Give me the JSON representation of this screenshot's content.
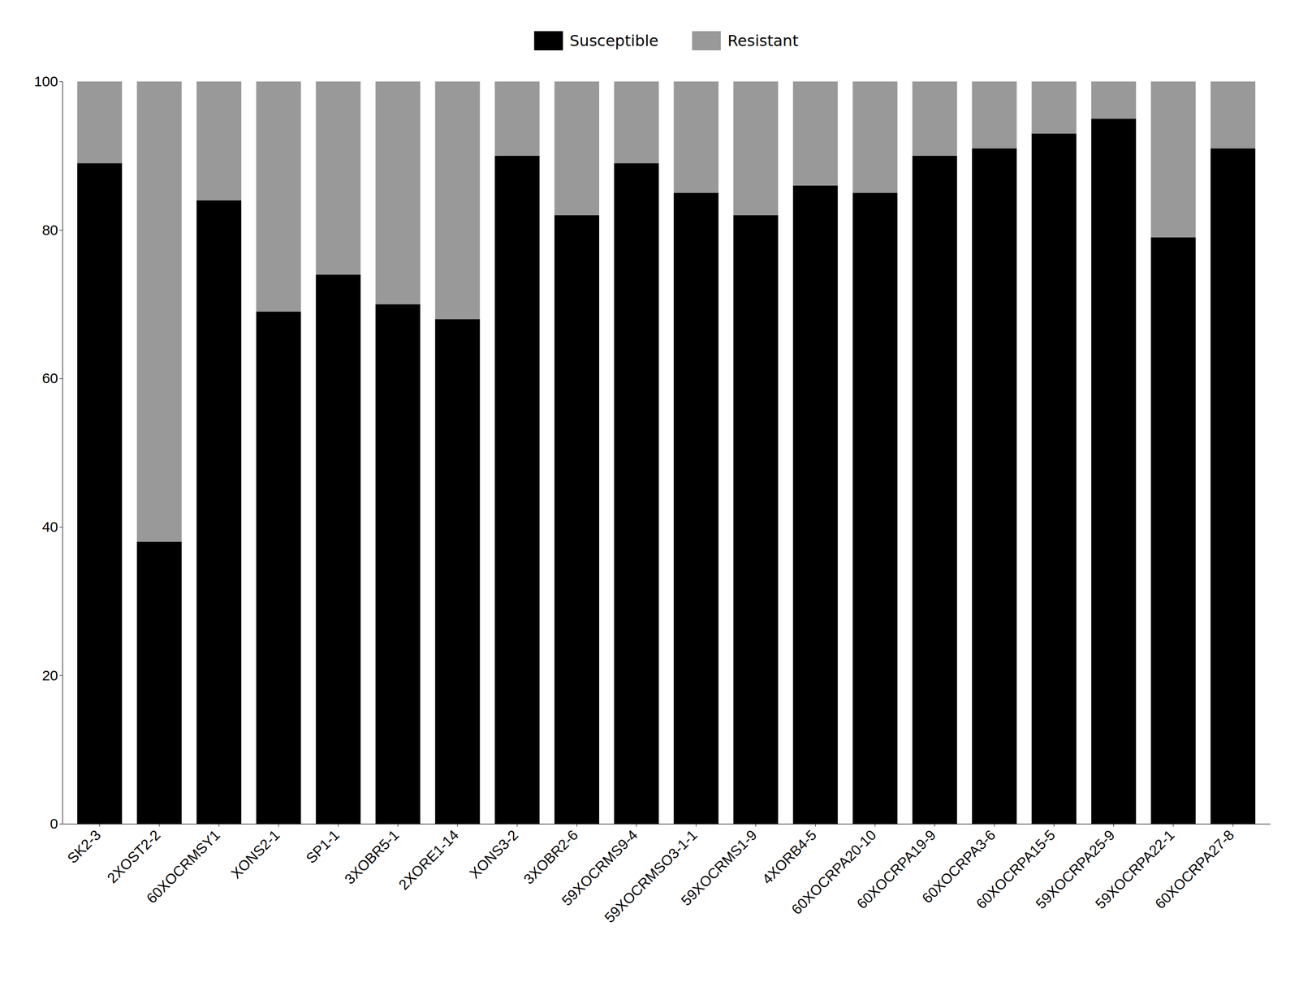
{
  "chart_data": {
    "type": "bar",
    "stacked": true,
    "categories": [
      "SK2-3",
      "2XOST2-2",
      "60XOCRMSY1",
      "XONS2-1",
      "SP1-1",
      "3XOBR5-1",
      "2XORE1-14",
      "XONS3-2",
      "3XOBR2-6",
      "59XOCRMS9-4",
      "59XOCRMSO3-1-1",
      "59XOCRMS1-9",
      "4XORB4-5",
      "60XOCRPA20-10",
      "60XOCRPA19-9",
      "60XOCRPA3-6",
      "60XOCRPA15-5",
      "59XOCRPA25-9",
      "59XOCRPA22-1",
      "60XOCRPA27-8"
    ],
    "series": [
      {
        "name": "Susceptible",
        "color": "#000000",
        "values": [
          89,
          38,
          84,
          69,
          74,
          70,
          68,
          90,
          82,
          89,
          85,
          82,
          86,
          85,
          90,
          91,
          93,
          95,
          79,
          91
        ]
      },
      {
        "name": "Resistant",
        "color": "#999999",
        "values": [
          11,
          62,
          16,
          31,
          26,
          30,
          32,
          10,
          18,
          11,
          15,
          18,
          14,
          15,
          10,
          9,
          7,
          5,
          21,
          9
        ]
      }
    ],
    "ylim": [
      0,
      100
    ],
    "yticks": [
      0,
      20,
      40,
      60,
      80,
      100
    ],
    "grid": false,
    "legend": "top"
  }
}
